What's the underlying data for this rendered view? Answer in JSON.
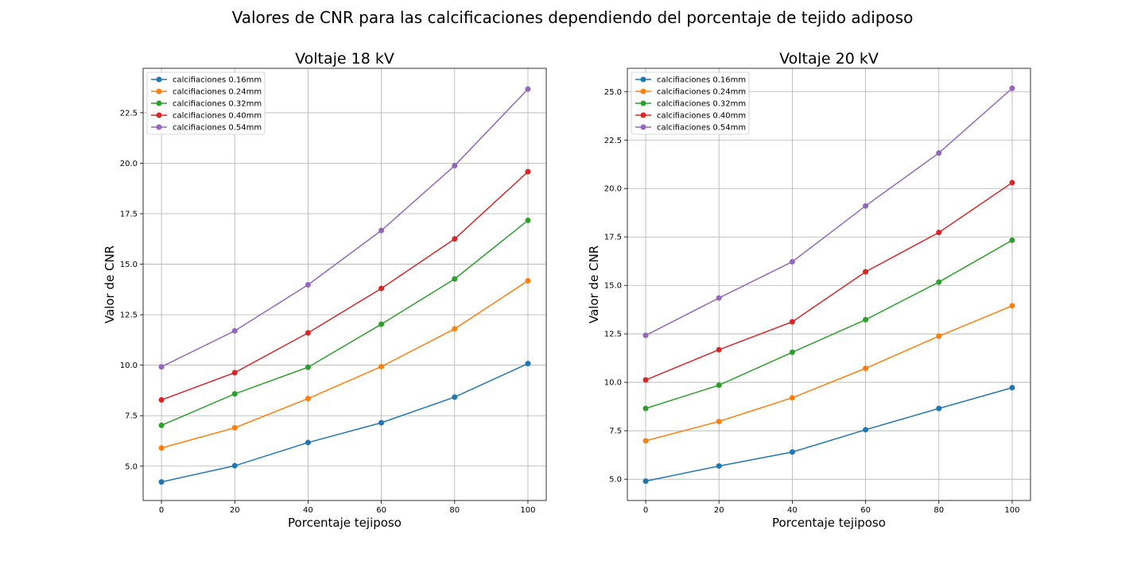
{
  "figure": {
    "title": "Valores de CNR para las calcificaciones dependiendo del porcentaje de tejido adiposo"
  },
  "colors": [
    "#1f77b4",
    "#ff7f0e",
    "#2ca02c",
    "#d62728",
    "#9467bd"
  ],
  "chart_data": [
    {
      "type": "line",
      "title": "Voltaje 18 kV",
      "xlabel": "Porcentaje tejiposo",
      "ylabel": "Valor de CNR",
      "x": [
        0,
        20,
        40,
        60,
        80,
        100
      ],
      "xticks": [
        0,
        20,
        40,
        60,
        80,
        100
      ],
      "yticks": [
        5.0,
        7.5,
        10.0,
        12.5,
        15.0,
        17.5,
        20.0,
        22.5
      ],
      "xlim": [
        -5,
        105
      ],
      "ylim": [
        3.3,
        24.7
      ],
      "grid": true,
      "legend_position": "upper-left",
      "series": [
        {
          "name": "calcifiaciones 0.16mm",
          "values": [
            4.22,
            5.02,
            6.17,
            7.15,
            8.42,
            10.08
          ]
        },
        {
          "name": "calcifiaciones 0.24mm",
          "values": [
            5.9,
            6.9,
            8.35,
            9.93,
            11.8,
            14.18
          ]
        },
        {
          "name": "calcifiaciones 0.32mm",
          "values": [
            7.02,
            8.58,
            9.9,
            12.03,
            14.27,
            17.17
          ]
        },
        {
          "name": "calcifiaciones 0.40mm",
          "values": [
            8.28,
            9.63,
            11.6,
            13.8,
            16.25,
            19.58
          ]
        },
        {
          "name": "calcifiaciones 0.54mm",
          "values": [
            9.92,
            11.7,
            13.98,
            16.67,
            19.88,
            23.67
          ]
        }
      ]
    },
    {
      "type": "line",
      "title": "Voltaje 20 kV",
      "xlabel": "Porcentaje tejiposo",
      "ylabel": "Valor de CNR",
      "x": [
        0,
        20,
        40,
        60,
        80,
        100
      ],
      "xticks": [
        0,
        20,
        40,
        60,
        80,
        100
      ],
      "yticks": [
        5.0,
        7.5,
        10.0,
        12.5,
        15.0,
        17.5,
        20.0,
        22.5,
        25.0
      ],
      "xlim": [
        -5,
        105
      ],
      "ylim": [
        3.9,
        26.2
      ],
      "grid": true,
      "legend_position": "upper-left",
      "series": [
        {
          "name": "calcifiaciones 0.16mm",
          "values": [
            4.9,
            5.68,
            6.4,
            7.55,
            8.65,
            9.72
          ]
        },
        {
          "name": "calcifiaciones 0.24mm",
          "values": [
            6.98,
            7.98,
            9.2,
            10.72,
            12.38,
            13.95
          ]
        },
        {
          "name": "calcifiaciones 0.32mm",
          "values": [
            8.65,
            9.85,
            11.55,
            13.23,
            15.17,
            17.33
          ]
        },
        {
          "name": "calcifiaciones 0.40mm",
          "values": [
            10.12,
            11.68,
            13.12,
            15.7,
            17.73,
            20.3
          ]
        },
        {
          "name": "calcifiaciones 0.54mm",
          "values": [
            12.42,
            14.35,
            16.22,
            19.1,
            21.83,
            25.17
          ]
        }
      ]
    }
  ]
}
